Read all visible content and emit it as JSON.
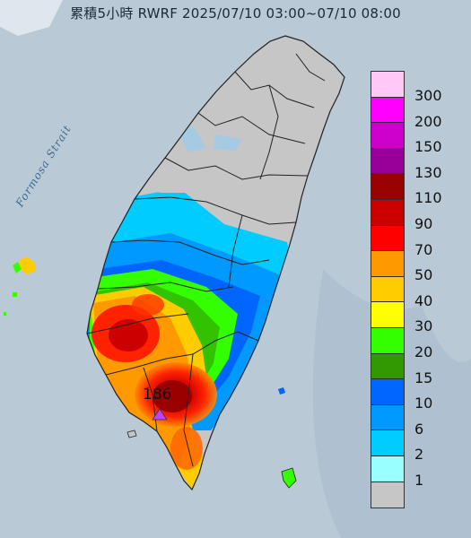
{
  "title": "累積5小時 RWRF 2025/07/10 03:00~07/10 08:00",
  "sea_label": "Formosa Strait",
  "max_value": "186",
  "legend": {
    "levels": [
      {
        "label": "300",
        "color": "#ffc8f5"
      },
      {
        "label": "200",
        "color": "#ff00ff"
      },
      {
        "label": "150",
        "color": "#cc00cc"
      },
      {
        "label": "130",
        "color": "#990099"
      },
      {
        "label": "110",
        "color": "#990000"
      },
      {
        "label": "90",
        "color": "#cc0000"
      },
      {
        "label": "70",
        "color": "#ff0000"
      },
      {
        "label": "50",
        "color": "#ff9900"
      },
      {
        "label": "40",
        "color": "#ffcc00"
      },
      {
        "label": "30",
        "color": "#ffff00"
      },
      {
        "label": "20",
        "color": "#33ff00"
      },
      {
        "label": "15",
        "color": "#339900"
      },
      {
        "label": "10",
        "color": "#0066ff"
      },
      {
        "label": "6",
        "color": "#0099ff"
      },
      {
        "label": "2",
        "color": "#00ccff"
      },
      {
        "label": "1",
        "color": "#99ffff"
      },
      {
        "label": "",
        "color": "#c6c6c6"
      }
    ]
  },
  "colors": {
    "sea": "#b9c9d6",
    "island": "#c6c6c6",
    "marker": "#b040ff"
  }
}
